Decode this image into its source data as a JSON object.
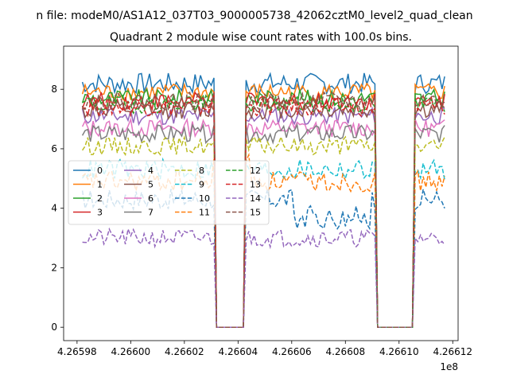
{
  "figure": {
    "suptitle": "n file: modeM0/AS1A12_037T03_9000005738_42062cztM0_level2_quad_clean",
    "offset_label": "1e8"
  },
  "chart_data": {
    "type": "line",
    "title": "Quadrant 2 module wise count rates with 100.0s bins.",
    "xlabel": "",
    "ylabel": "",
    "xlim": [
      426597500.0,
      426612200.0
    ],
    "ylim": [
      -0.45,
      9.45
    ],
    "x_ticks": [
      426598000.0,
      426600000.0,
      426602000.0,
      426604000.0,
      426606000.0,
      426608000.0,
      426610000.0,
      426612000.0
    ],
    "x_tick_labels": [
      "4.26598",
      "4.26600",
      "4.26602",
      "4.26604",
      "4.26606",
      "4.26608",
      "4.26610",
      "4.26612"
    ],
    "y_ticks": [
      0,
      2,
      4,
      6,
      8
    ],
    "y_tick_labels": [
      "0",
      "2",
      "4",
      "6",
      "8"
    ],
    "grid": false,
    "legend": {
      "placement": "center-left",
      "columns": 4
    },
    "x_start": 426598200.0,
    "x_step": 100,
    "segments": [
      {
        "from": 426598200.0,
        "to": 426603050.0
      },
      {
        "from": 426604350.0,
        "to": 426609050.0
      },
      {
        "from": 426610650.0,
        "to": 426611700.0
      }
    ],
    "gaps": [
      {
        "from": 426603150.0,
        "to": 426604250.0
      },
      {
        "from": 426609150.0,
        "to": 426610550.0
      }
    ],
    "series": [
      {
        "name": "0",
        "color": "#1f77b4",
        "style": "solid",
        "level": 8.2,
        "amp": 0.35
      },
      {
        "name": "1",
        "color": "#ff7f0e",
        "style": "solid",
        "level": 7.9,
        "amp": 0.3
      },
      {
        "name": "2",
        "color": "#2ca02c",
        "style": "solid",
        "level": 7.7,
        "amp": 0.3
      },
      {
        "name": "3",
        "color": "#d62728",
        "style": "solid",
        "level": 7.6,
        "amp": 0.3
      },
      {
        "name": "4",
        "color": "#9467bd",
        "style": "solid",
        "level": 7.1,
        "amp": 0.3
      },
      {
        "name": "5",
        "color": "#8c564b",
        "style": "solid",
        "level": 7.3,
        "amp": 0.3
      },
      {
        "name": "6",
        "color": "#e377c2",
        "style": "solid",
        "level": 6.7,
        "amp": 0.3
      },
      {
        "name": "7",
        "color": "#7f7f7f",
        "style": "solid",
        "level": 6.5,
        "amp": 0.3
      },
      {
        "name": "8",
        "color": "#bcbd22",
        "style": "dashed",
        "level": 6.1,
        "amp": 0.3
      },
      {
        "name": "9",
        "color": "#17becf",
        "style": "dashed",
        "level": 5.3,
        "amp": 0.35
      },
      {
        "name": "10",
        "color": "#1f77b4",
        "style": "dashed",
        "level": 4.3,
        "amp": 0.35
      },
      {
        "name": "11",
        "color": "#ff7f0e",
        "style": "dashed",
        "level": 4.9,
        "amp": 0.35
      },
      {
        "name": "12",
        "color": "#2ca02c",
        "style": "dashed",
        "level": 7.5,
        "amp": 0.3
      },
      {
        "name": "13",
        "color": "#d62728",
        "style": "dashed",
        "level": 7.4,
        "amp": 0.3
      },
      {
        "name": "14",
        "color": "#9467bd",
        "style": "dashed",
        "level": 3.0,
        "amp": 0.3
      },
      {
        "name": "15",
        "color": "#8c564b",
        "style": "dashed",
        "level": 7.6,
        "amp": 0.3
      }
    ]
  }
}
